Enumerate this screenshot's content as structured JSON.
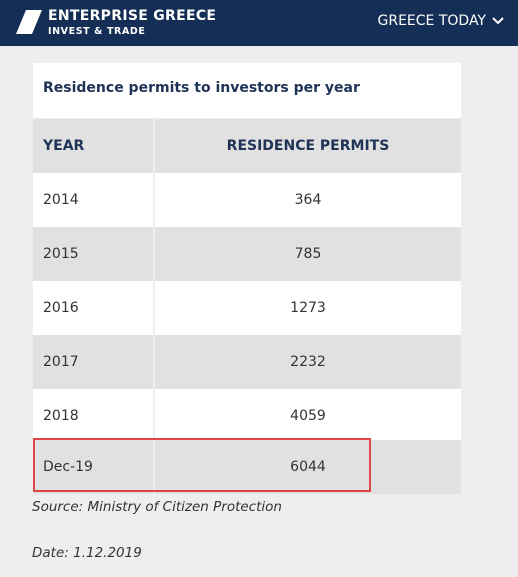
{
  "header": {
    "brand_name": "ENTERPRISE GREECE",
    "brand_sub": "INVEST & TRADE",
    "nav_label": "GREECE TODAY",
    "nav_icon": "chevron-down-icon",
    "logo_icon": "enterprise-greece-logo",
    "colors": {
      "background": "#142e55",
      "text": "#ffffff"
    }
  },
  "table": {
    "title": "Residence permits to investors per year",
    "columns": [
      "YEAR",
      "RESIDENCE PERMITS"
    ],
    "rows": [
      [
        "2014",
        "364"
      ],
      [
        "2015",
        "785"
      ],
      [
        "2016",
        "1273"
      ],
      [
        "2017",
        "2232"
      ],
      [
        "2018",
        "4059"
      ],
      [
        "Dec-19",
        "6044"
      ]
    ],
    "highlight_color": "#e04646"
  },
  "footer": {
    "source": "Source: Ministry of Citizen Protection",
    "date": "Date: 1.12.2019"
  }
}
